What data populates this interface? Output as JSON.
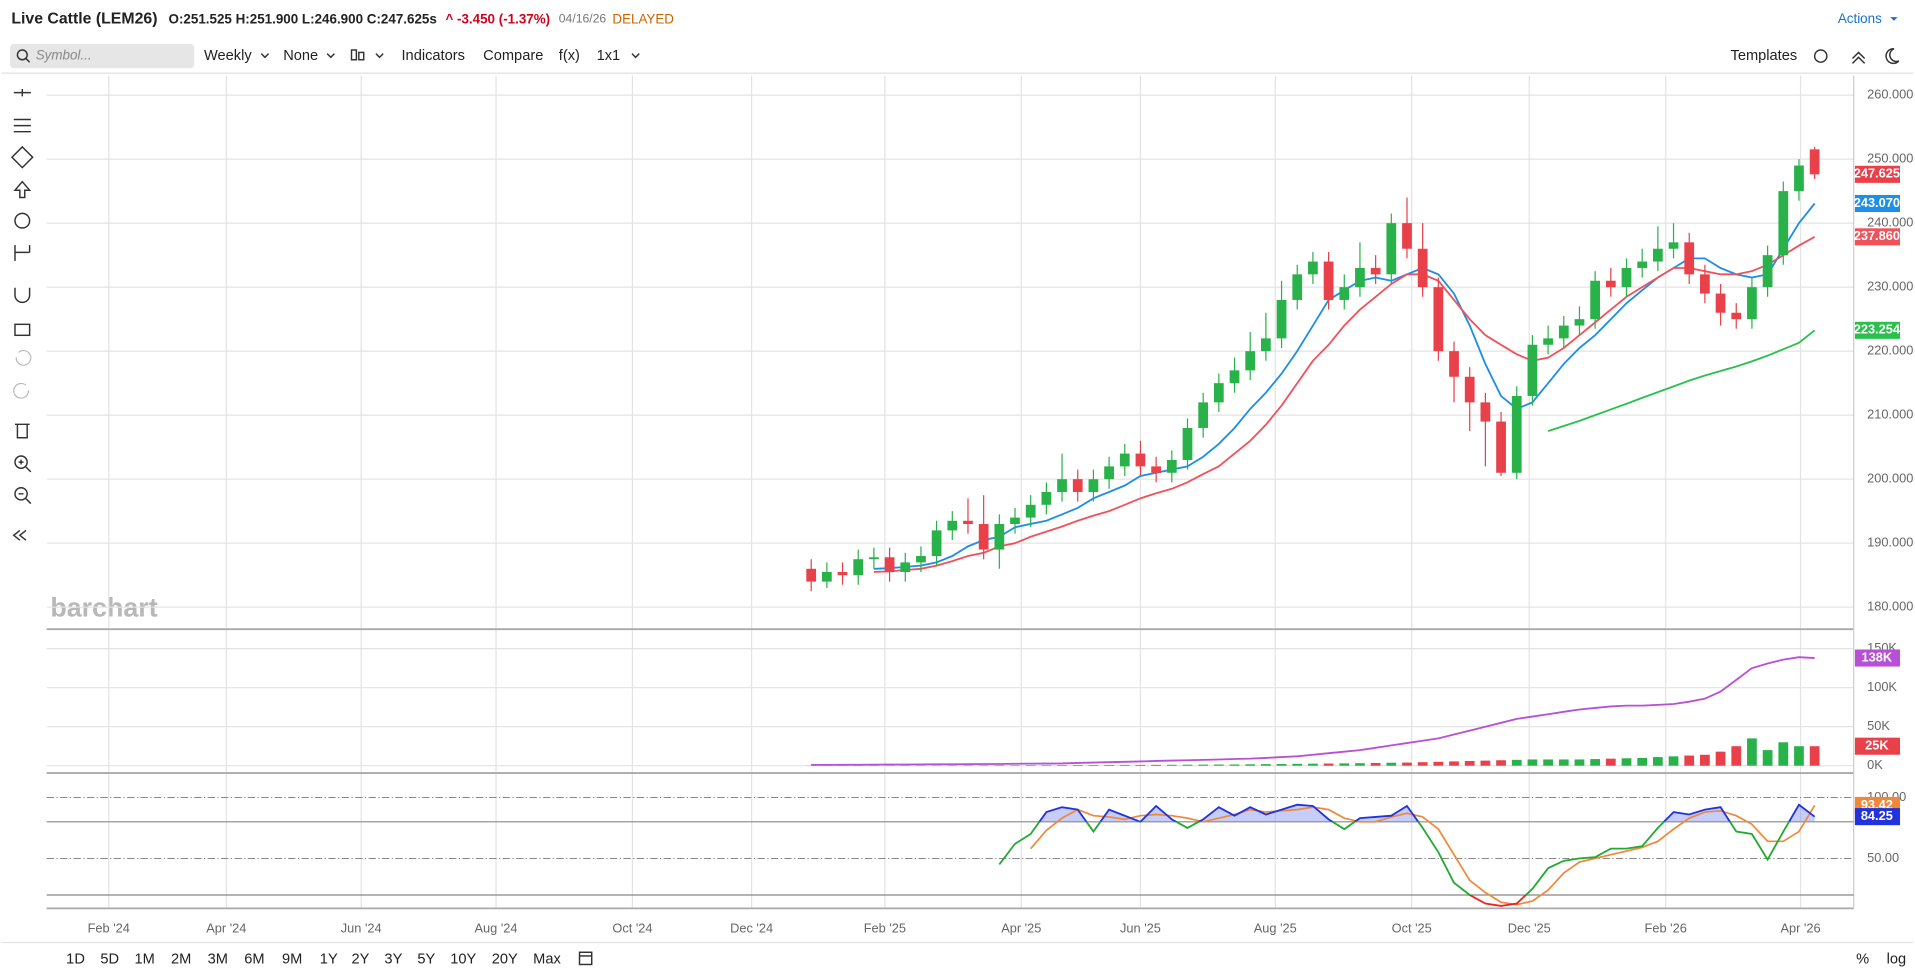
{
  "header": {
    "symbol": "Live Cattle (LEM26)",
    "ohlc": "O:251.525 H:251.900 L:246.900 C:247.625s",
    "change": "^ -3.450 (-1.37%)",
    "date": "04/16/26",
    "status": "DELAYED",
    "actions": "Actions"
  },
  "toolbar": {
    "search_placeholder": "Symbol...",
    "items": [
      "Weekly",
      "None",
      "Indicators",
      "Compare",
      "f(x)",
      "1x1"
    ],
    "templates": "Templates"
  },
  "watermark": "barchart",
  "periods": [
    "1D",
    "5D",
    "1M",
    "2M",
    "3M",
    "6M",
    "9M",
    "1Y",
    "2Y",
    "3Y",
    "5Y",
    "10Y",
    "20Y",
    "Max"
  ],
  "scale_buttons": [
    "%",
    "log"
  ],
  "chart_data": [
    {
      "type": "candlestick",
      "xlim": [
        -48.76,
        66.49
      ],
      "xticks": [
        {
          "value": -44.8,
          "label": "Feb '24"
        },
        {
          "value": -37.3,
          "label": "Apr '24"
        },
        {
          "value": -28.7,
          "label": "Jun '24"
        },
        {
          "value": -20.1,
          "label": "Aug '24"
        },
        {
          "value": -11.4,
          "label": "Oct '24"
        },
        {
          "value": -3.8,
          "label": "Dec '24"
        },
        {
          "value": 4.7,
          "label": "Feb '25"
        },
        {
          "value": 13.4,
          "label": "Apr '25"
        },
        {
          "value": 21.0,
          "label": "Jun '25"
        },
        {
          "value": 29.6,
          "label": "Aug '25"
        },
        {
          "value": 38.3,
          "label": "Oct '25"
        },
        {
          "value": 45.8,
          "label": "Dec '25"
        },
        {
          "value": 54.5,
          "label": "Feb '26"
        },
        {
          "value": 63.1,
          "label": "Apr '26"
        }
      ],
      "ylim": [
        176.57,
        263.05
      ],
      "yticks": [
        {
          "value": 180,
          "label": "180.000"
        },
        {
          "value": 190,
          "label": "190.000"
        },
        {
          "value": 200,
          "label": "200.000"
        },
        {
          "value": 210,
          "label": "210.000"
        },
        {
          "value": 220,
          "label": "220.000"
        },
        {
          "value": 230,
          "label": "230.000"
        },
        {
          "value": 240,
          "label": "240.000"
        },
        {
          "value": 250,
          "label": "250.000"
        },
        {
          "value": 260,
          "label": "260.000"
        }
      ],
      "grid": true,
      "up_color": "#2ab24a",
      "down_color": "#e8414a",
      "open": [
        186,
        184,
        185.5,
        185,
        187.5,
        187.8,
        185.5,
        187,
        188,
        192,
        193.5,
        193,
        189,
        193,
        194,
        196,
        198,
        200,
        198,
        200,
        202,
        204,
        202,
        201,
        203,
        208,
        212,
        215,
        217,
        220,
        222,
        228,
        232,
        234,
        228,
        230,
        233,
        232,
        240,
        236,
        230,
        220,
        216,
        212,
        209,
        201,
        213,
        221,
        222,
        224,
        225,
        231,
        230,
        233,
        234,
        236,
        237,
        232,
        229,
        226,
        225,
        230,
        235,
        245,
        251.525
      ],
      "high": [
        187.5,
        187,
        187,
        189,
        189.3,
        189.3,
        188.5,
        189.5,
        193.5,
        195,
        197,
        197.5,
        194.5,
        195.5,
        197.5,
        199.5,
        204,
        201.5,
        201.5,
        203.5,
        205.5,
        206,
        203.5,
        204.5,
        209.5,
        213.5,
        216.5,
        219,
        223,
        226,
        231,
        233.5,
        235.5,
        235.5,
        232,
        237,
        235,
        241.5,
        244,
        240,
        231.5,
        221.5,
        217.5,
        213.5,
        210.5,
        214.5,
        222.5,
        224,
        225.5,
        227,
        232.5,
        233,
        234.5,
        236,
        239.5,
        240,
        238.5,
        233.5,
        230.5,
        227.5,
        231.5,
        236.5,
        246.5,
        250,
        251.9
      ],
      "low": [
        182.5,
        183,
        183.5,
        183.5,
        186,
        184,
        184,
        185.5,
        186.5,
        190.5,
        191.5,
        187.5,
        186,
        191.5,
        192.5,
        194.5,
        196.5,
        196.5,
        196.5,
        198.5,
        200.5,
        200.5,
        199.5,
        199.5,
        201.5,
        206.5,
        210.5,
        213.5,
        215.5,
        218.5,
        220.5,
        226.5,
        230.5,
        226.5,
        226.5,
        228.5,
        230.5,
        230.5,
        234.5,
        228.5,
        218.5,
        212,
        207.5,
        202,
        200.5,
        200,
        211.5,
        219.5,
        220.5,
        222.5,
        223.5,
        228.5,
        228.5,
        231.5,
        232.5,
        234.5,
        230.5,
        227.5,
        224,
        223.5,
        223.5,
        228.5,
        233.5,
        243.5,
        246.9
      ],
      "close": [
        184,
        185.5,
        185,
        187.5,
        187.8,
        185.5,
        187,
        188,
        192,
        193.5,
        193,
        189,
        193,
        194,
        196,
        198,
        200,
        198,
        200,
        202,
        204,
        202,
        201,
        203,
        208,
        212,
        215,
        217,
        220,
        222,
        228,
        232,
        234,
        228,
        230,
        233,
        232,
        240,
        236,
        230,
        220,
        216,
        212,
        209,
        201,
        213,
        221,
        222,
        224,
        225,
        231,
        230,
        233,
        234,
        236,
        237,
        232,
        229,
        226,
        225,
        230,
        235,
        245,
        249,
        247.625
      ],
      "series": [
        {
          "color": "#1f8ee6",
          "last_label": "243.070",
          "values": [
            null,
            null,
            null,
            null,
            186,
            186.1,
            186.3,
            186.5,
            187,
            188,
            189.5,
            190.5,
            191,
            192.5,
            193,
            193.5,
            194.5,
            195.5,
            197,
            198,
            199,
            200.5,
            201,
            201.5,
            202,
            203.5,
            205.5,
            208,
            211,
            213.5,
            216.5,
            220,
            224,
            228,
            229.5,
            231,
            231.5,
            231,
            232,
            233,
            232,
            229,
            224,
            218,
            213,
            211,
            212,
            215,
            218,
            220.5,
            222.5,
            225,
            227.5,
            229.5,
            231.5,
            233,
            234.5,
            234.5,
            233,
            232,
            231.5,
            232,
            236,
            240,
            243.07
          ]
        },
        {
          "color": "#f0525c",
          "last_label": "237.860",
          "values": [
            null,
            null,
            null,
            null,
            185.5,
            185.6,
            185.8,
            186,
            186.5,
            187.2,
            188,
            188.5,
            189.5,
            190,
            191,
            191.8,
            192.6,
            193.5,
            194.3,
            195,
            196,
            197,
            197.8,
            198.5,
            199.5,
            200.8,
            202,
            204,
            206,
            208.5,
            211.5,
            215,
            218.5,
            221,
            224,
            226.5,
            228.5,
            230.5,
            232,
            232,
            231,
            228,
            225,
            222.5,
            221,
            219.5,
            218.5,
            219,
            220.5,
            222.5,
            224.5,
            226.5,
            228.5,
            230,
            231.5,
            233,
            233,
            232.5,
            232,
            232,
            232.5,
            233.5,
            235,
            236.5,
            237.86
          ]
        },
        {
          "color": "#2bbf4e",
          "values": [
            null,
            null,
            null,
            null,
            null,
            null,
            null,
            null,
            null,
            null,
            null,
            null,
            null,
            null,
            null,
            null,
            null,
            null,
            null,
            null,
            null,
            null,
            null,
            null,
            null,
            null,
            null,
            null,
            null,
            null,
            null,
            null,
            null,
            null,
            null,
            null,
            null,
            null,
            null,
            null,
            null,
            null,
            null,
            null,
            null,
            null,
            null,
            207.5,
            208.3,
            209.1,
            210,
            210.9,
            211.8,
            212.7,
            213.6,
            214.5,
            215.4,
            216.2,
            216.9,
            217.6,
            218.4,
            219.3,
            220.3,
            221.3,
            223.254
          ]
        }
      ]
    },
    {
      "type": "volume",
      "ylim": [
        -9400,
        175000
      ],
      "yticks": [
        {
          "value": 0,
          "label": "0K"
        },
        {
          "value": 50000,
          "label": "50K"
        },
        {
          "value": 100000,
          "label": "100K"
        },
        {
          "value": 150000,
          "label": "150K"
        }
      ],
      "series": [
        {
          "type": "bar",
          "last_label": "25K",
          "color": "#e8414a",
          "values": [
            200,
            200,
            300,
            300,
            300,
            300,
            400,
            400,
            400,
            500,
            500,
            500,
            600,
            600,
            700,
            700,
            800,
            800,
            900,
            900,
            1000,
            1000,
            1100,
            1200,
            1300,
            1400,
            1500,
            1600,
            1800,
            2000,
            2200,
            2400,
            2600,
            2800,
            3000,
            3200,
            3500,
            3800,
            4000,
            4500,
            5000,
            5500,
            6000,
            6500,
            7000,
            7500,
            8000,
            8000,
            8000,
            8000,
            8500,
            9000,
            9500,
            10000,
            11000,
            12000,
            13000,
            14000,
            18000,
            25000,
            35000,
            20000,
            30000,
            25000,
            25000
          ]
        },
        {
          "type": "line",
          "color": "#b84fd6",
          "last_label": "138K",
          "values": [
            1000,
            1100,
            1200,
            1300,
            1400,
            1500,
            1600,
            1700,
            1800,
            1900,
            2000,
            2100,
            2200,
            2400,
            2600,
            2800,
            3000,
            3500,
            4000,
            4500,
            5000,
            5500,
            6000,
            6500,
            7000,
            7500,
            8000,
            8500,
            9000,
            10000,
            11000,
            12000,
            14000,
            16000,
            18000,
            20000,
            23000,
            26000,
            29000,
            32000,
            35000,
            40000,
            45000,
            50000,
            55000,
            60000,
            63000,
            66000,
            69000,
            72000,
            74000,
            76000,
            77000,
            77000,
            78000,
            79000,
            82000,
            86000,
            95000,
            110000,
            125000,
            131000,
            136000,
            139000,
            138000
          ]
        }
      ]
    },
    {
      "type": "stochastic",
      "ylim": [
        9,
        120
      ],
      "yticks": [
        {
          "value": 50,
          "label": "50.00"
        },
        {
          "value": 100,
          "label": "100.00"
        }
      ],
      "levels": [
        80,
        20
      ],
      "series": [
        {
          "color": "#2233dd",
          "mid_color": "#22aa33",
          "low_color": "#ee2222",
          "fill": "#8090f0",
          "values": [
            null,
            null,
            null,
            null,
            null,
            null,
            null,
            null,
            null,
            null,
            null,
            null,
            45,
            62,
            70,
            88,
            92,
            90,
            72,
            90,
            85,
            80,
            93,
            82,
            75,
            82,
            92,
            85,
            92,
            86,
            90,
            94,
            93,
            82,
            74,
            83,
            84,
            85,
            93,
            75,
            55,
            30,
            20,
            13,
            11,
            13,
            25,
            42,
            48,
            50,
            51,
            58,
            58,
            60,
            75,
            88,
            86,
            90,
            92,
            72,
            70,
            49,
            72,
            94,
            84.25
          ]
        },
        {
          "color": "#f0883a",
          "values": [
            null,
            null,
            null,
            null,
            null,
            null,
            null,
            null,
            null,
            null,
            null,
            null,
            null,
            null,
            58,
            73,
            83,
            90,
            85,
            84,
            82,
            85,
            86,
            85,
            83,
            80,
            83,
            86,
            90,
            88,
            89,
            90,
            92,
            90,
            83,
            80,
            80,
            84,
            87,
            84,
            74,
            53,
            32,
            22,
            14,
            12,
            15,
            24,
            38,
            47,
            50,
            53,
            56,
            59,
            64,
            74,
            83,
            88,
            89,
            85,
            78,
            64,
            64,
            72,
            93.42
          ]
        }
      ]
    }
  ]
}
